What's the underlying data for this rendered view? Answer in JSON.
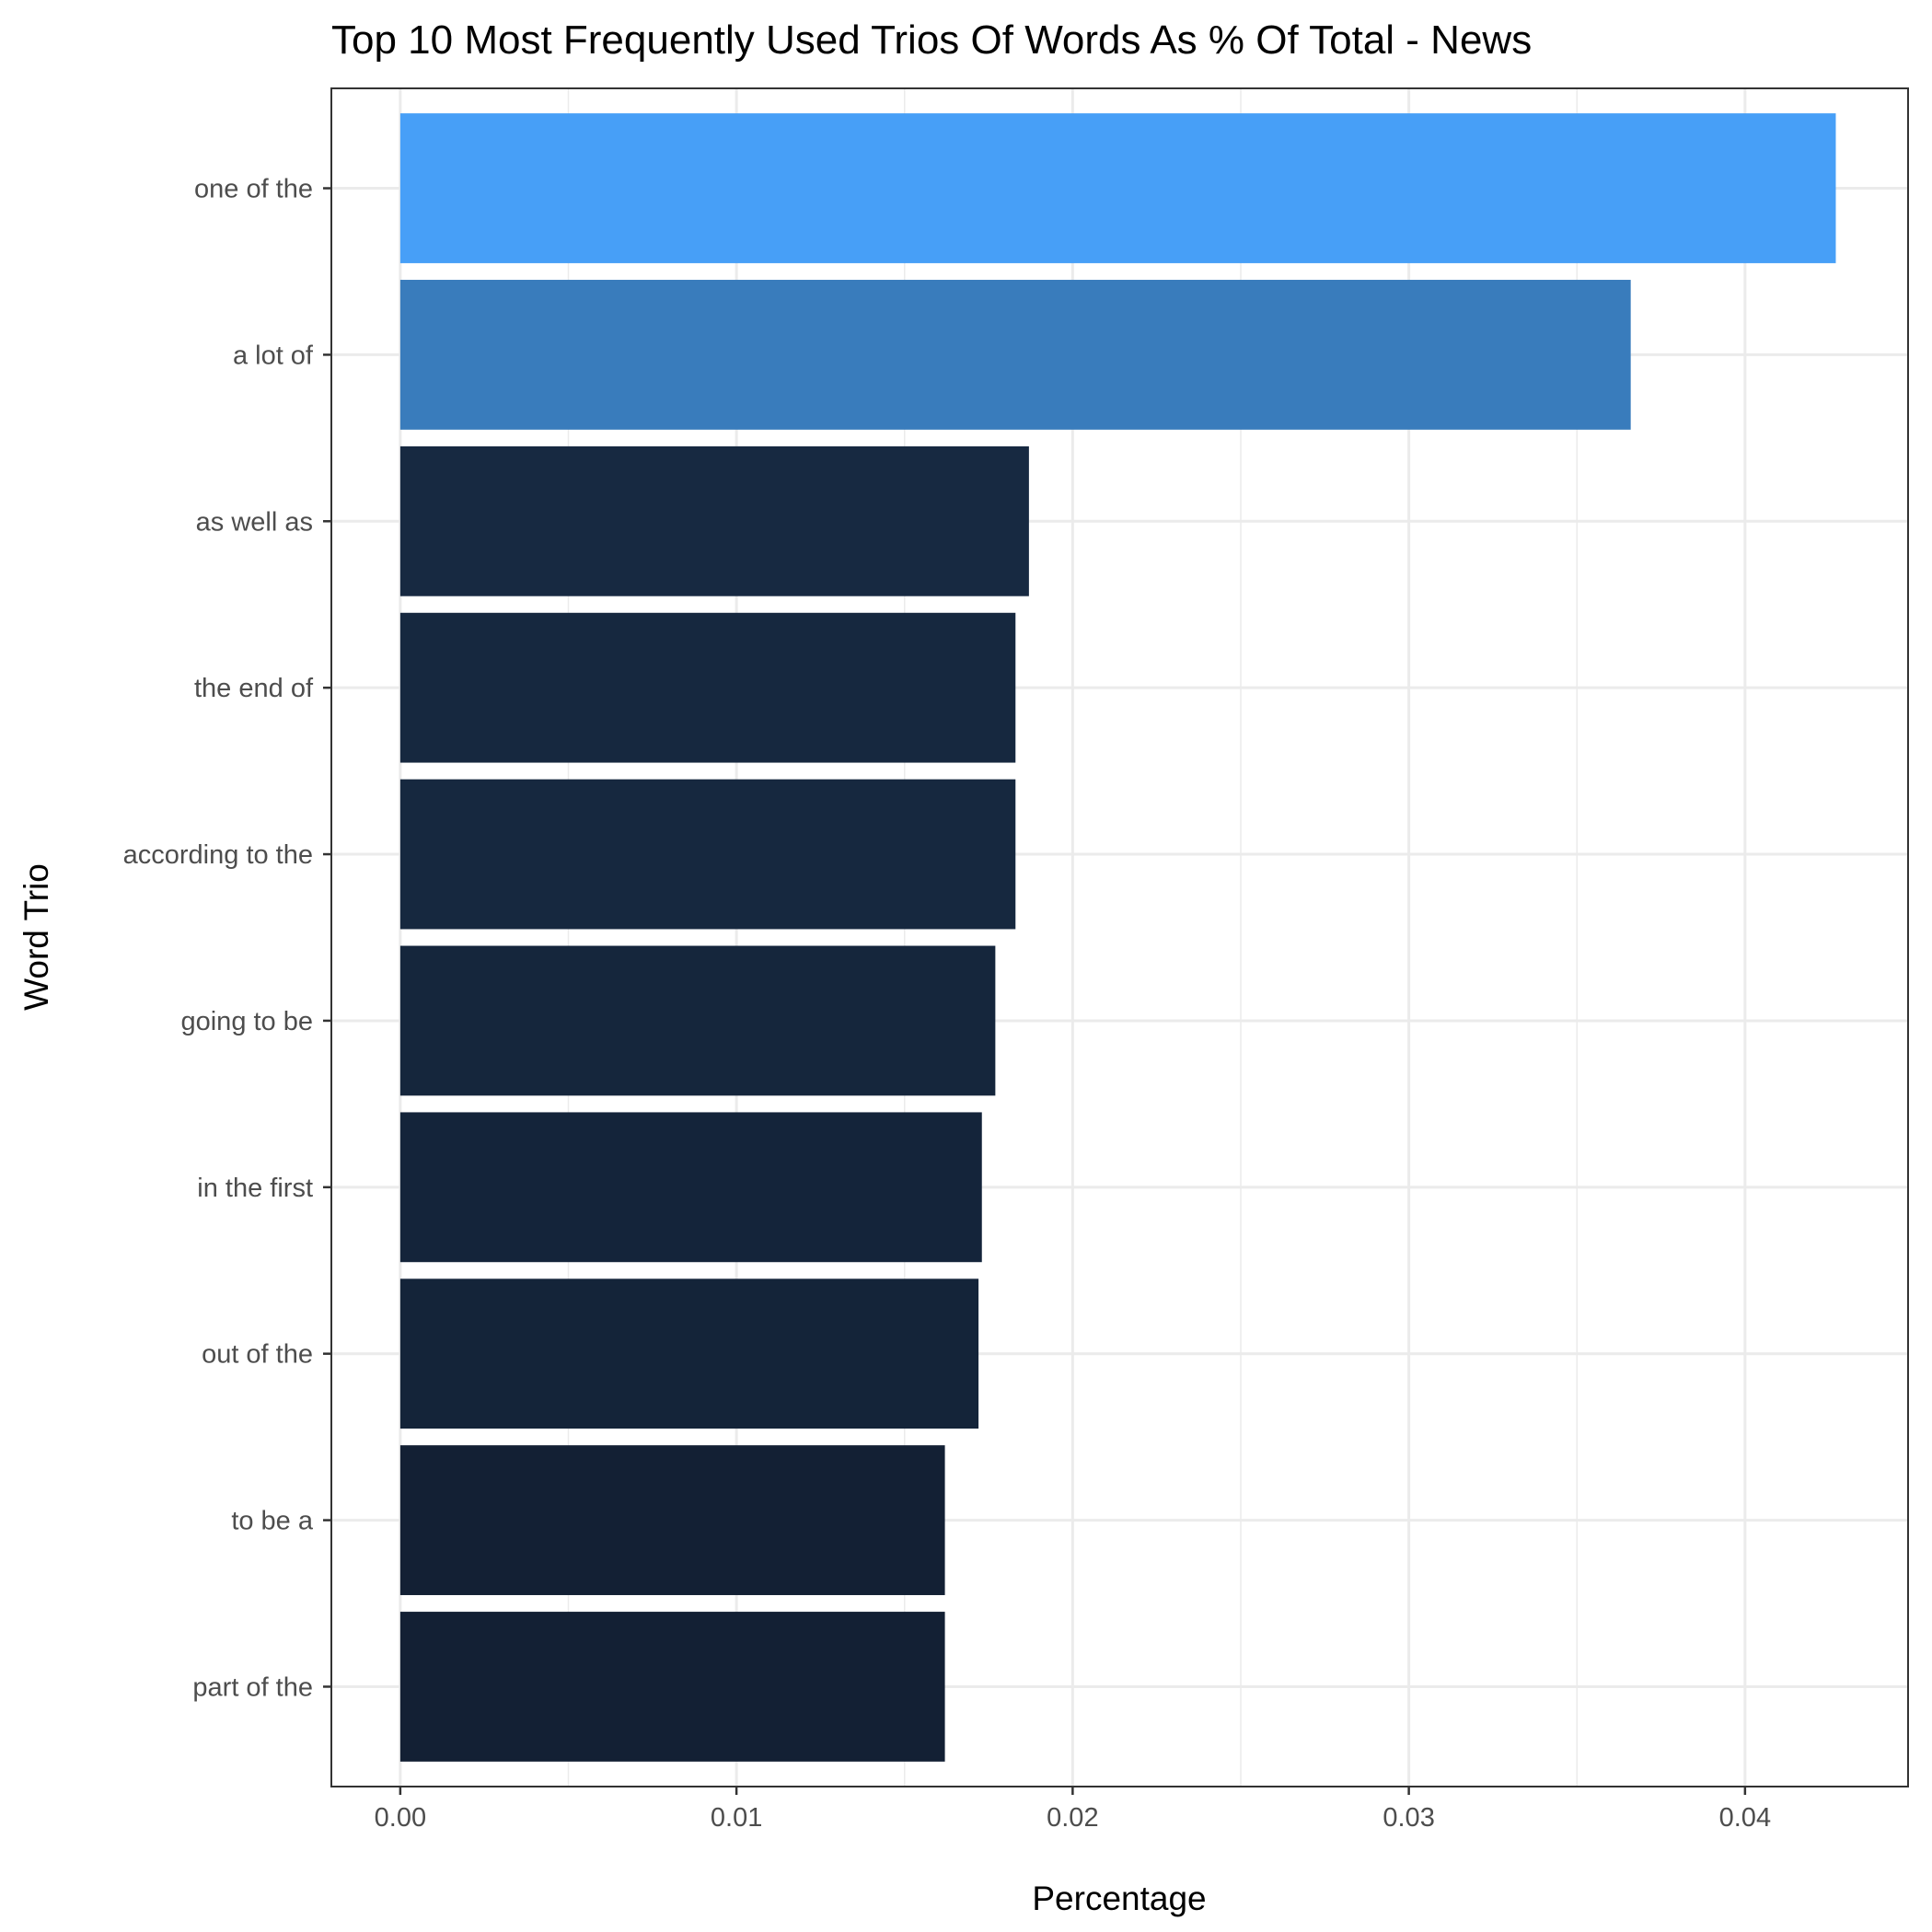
{
  "chart_data": {
    "type": "bar",
    "orientation": "horizontal",
    "title": "Top 10 Most Frequently Used Trios Of Words As % Of Total - News",
    "xlabel": "Percentage",
    "ylabel": "Word Trio",
    "categories": [
      "one of the",
      "a lot of",
      "as well as",
      "the end of",
      "according to the",
      "going to be",
      "in the first",
      "out of the",
      "to be a",
      "part of the"
    ],
    "values": [
      0.0427,
      0.0366,
      0.0187,
      0.0183,
      0.0183,
      0.0177,
      0.0173,
      0.0172,
      0.0162,
      0.0162
    ],
    "colors": [
      "#479ff7",
      "#397cbc",
      "#172941",
      "#16283f",
      "#16283f",
      "#15263c",
      "#14243a",
      "#142439",
      "#132034",
      "#132034"
    ],
    "xlim": [
      -0.00205,
      0.04485
    ],
    "xticks": [
      0.0,
      0.01,
      0.02,
      0.03,
      0.04
    ],
    "xtick_labels": [
      "0.00",
      "0.01",
      "0.02",
      "0.03",
      "0.04"
    ],
    "grid": true,
    "legend": "none"
  }
}
